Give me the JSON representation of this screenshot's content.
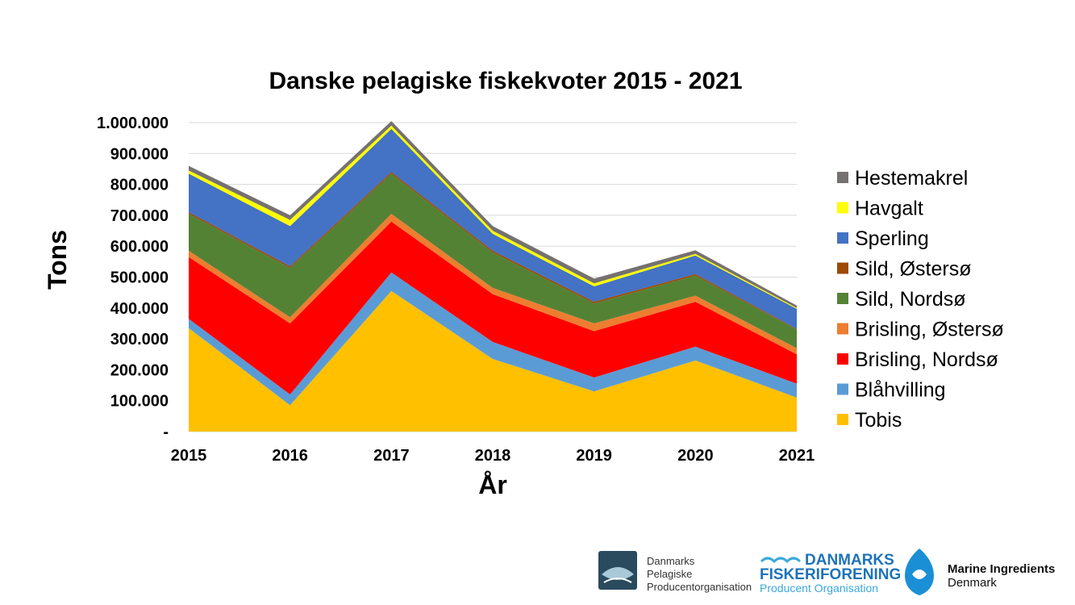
{
  "chart_data": {
    "type": "area",
    "stacked": true,
    "title": "Danske pelagiske fiskekvoter 2015 - 2021",
    "xlabel": "År",
    "ylabel": "Tons",
    "x": [
      "2015",
      "2016",
      "2017",
      "2018",
      "2019",
      "2020",
      "2021"
    ],
    "ylim": [
      0,
      1000000
    ],
    "yticks": [
      0,
      100000,
      200000,
      300000,
      400000,
      500000,
      600000,
      700000,
      800000,
      900000,
      1000000
    ],
    "ytick_labels": [
      "-",
      "100.000",
      "200.000",
      "300.000",
      "400.000",
      "500.000",
      "600.000",
      "700.000",
      "800.000",
      "900.000",
      "1.000.000"
    ],
    "grid": true,
    "legend_position": "right",
    "series": [
      {
        "name": "Tobis",
        "color": "#FFC000",
        "values": [
          335000,
          85000,
          455000,
          235000,
          130000,
          230000,
          110000
        ]
      },
      {
        "name": "Blåhvilling",
        "color": "#5B9BD5",
        "values": [
          30000,
          35000,
          60000,
          55000,
          45000,
          45000,
          45000
        ]
      },
      {
        "name": "Brisling, Nordsø",
        "color": "#FF0000",
        "values": [
          200000,
          230000,
          165000,
          155000,
          150000,
          145000,
          95000
        ]
      },
      {
        "name": "Brisling, Østersø",
        "color": "#ED7D31",
        "values": [
          20000,
          20000,
          25000,
          20000,
          25000,
          20000,
          20000
        ]
      },
      {
        "name": "Sild, Nordsø",
        "color": "#548235",
        "values": [
          120000,
          160000,
          130000,
          115000,
          65000,
          65000,
          60000
        ]
      },
      {
        "name": "Sild, Østersø",
        "color": "#9C4A06",
        "values": [
          5000,
          5000,
          5000,
          5000,
          5000,
          5000,
          2000
        ]
      },
      {
        "name": "Sperling",
        "color": "#4472C4",
        "values": [
          125000,
          130000,
          140000,
          55000,
          50000,
          60000,
          65000
        ]
      },
      {
        "name": "Havgalt",
        "color": "#FFFF00",
        "values": [
          10000,
          20000,
          10000,
          10000,
          10000,
          5000,
          3000
        ]
      },
      {
        "name": "Hestemakrel",
        "color": "#767171",
        "values": [
          15000,
          15000,
          15000,
          15000,
          15000,
          12000,
          8000
        ]
      }
    ]
  },
  "logos": {
    "dpo": {
      "line1": "Danmarks",
      "line2": "Pelagiske",
      "line3": "Producentorganisation"
    },
    "df": {
      "line1": "DANMARKS",
      "line2": "FISKERIFORENING",
      "line3": "Producent Organisation"
    },
    "mi": {
      "line1": "Marine Ingredients",
      "line2": "Denmark"
    }
  },
  "colors": {
    "df_blue": "#1E73B8",
    "df_light": "#39A9DC",
    "mi_blue": "#1B8FD6",
    "dpo_dark": "#2A4A5E"
  }
}
